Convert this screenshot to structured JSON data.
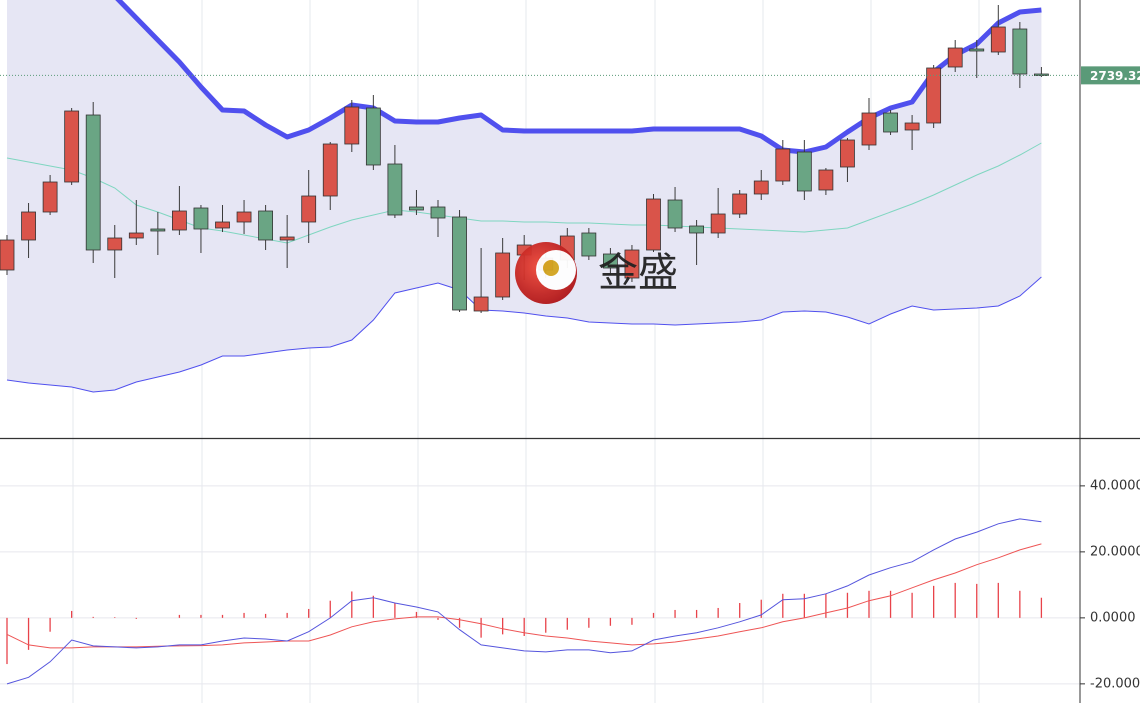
{
  "chart_data": [
    {
      "type": "candlestick",
      "watermark": "金盛",
      "last_price": 2739.32,
      "ylim": [
        2557,
        2777
      ],
      "up_color": "#d9544a",
      "down_color": "#6aa584",
      "band_color": "#5050ee",
      "middle_color": "#7fd6c0",
      "open": [
        2642,
        2657,
        2671,
        2686,
        2719.5,
        2652,
        2658,
        2662.5,
        2662,
        2673,
        2663,
        2666,
        2671.5,
        2657,
        2666,
        2679,
        2705,
        2723,
        2695,
        2673.5,
        2673.5,
        2668.5,
        2621.5,
        2628.5,
        2649.5,
        2642,
        2647,
        2660.5,
        2650,
        2638,
        2652,
        2677,
        2664,
        2660.5,
        2670,
        2680,
        2686.5,
        2701,
        2682,
        2693.5,
        2704.5,
        2720.5,
        2712,
        2715.5,
        2743.5,
        2752.5,
        2751,
        2762.5,
        2740
      ],
      "high": [
        2659.5,
        2675.5,
        2689.5,
        2723,
        2726,
        2664.5,
        2677,
        2671,
        2684,
        2674.5,
        2674.5,
        2677,
        2674.5,
        2669.5,
        2692,
        2706,
        2727,
        2729.5,
        2704.5,
        2682,
        2677,
        2672,
        2653,
        2658,
        2659.5,
        2652,
        2663,
        2663,
        2653,
        2654.5,
        2680,
        2683.5,
        2667,
        2683,
        2682,
        2692,
        2707,
        2707,
        2693,
        2708,
        2728,
        2722,
        2719.5,
        2744.5,
        2757,
        2757,
        2774.5,
        2766,
        2743.5
      ],
      "low": [
        2639.5,
        2648,
        2669.5,
        2684.5,
        2645.5,
        2638,
        2654.5,
        2649.5,
        2659.5,
        2650.5,
        2661,
        2660,
        2652,
        2643,
        2655.5,
        2672,
        2701,
        2692,
        2668,
        2669.5,
        2658.5,
        2621,
        2620.5,
        2627,
        2637,
        2638,
        2643,
        2647,
        2639.5,
        2636,
        2651,
        2661,
        2644.5,
        2658,
        2668,
        2677,
        2684.5,
        2677,
        2679.5,
        2686,
        2702,
        2709.5,
        2702,
        2713,
        2741,
        2738,
        2749.5,
        2733,
        2738.5
      ],
      "close": [
        2657,
        2671,
        2686,
        2721.5,
        2652,
        2658,
        2660.5,
        2661.5,
        2671.5,
        2662.5,
        2666,
        2671,
        2657,
        2658.5,
        2679,
        2705,
        2723.5,
        2694.5,
        2669.5,
        2672,
        2668,
        2622,
        2628.5,
        2650.5,
        2654.5,
        2648,
        2659,
        2649,
        2643,
        2652,
        2677.5,
        2663,
        2660.5,
        2670,
        2680,
        2686.5,
        2702.5,
        2681.5,
        2692,
        2707,
        2720.5,
        2711,
        2715.5,
        2743,
        2753,
        2751.5,
        2763.5,
        2740,
        2739.32
      ],
      "bands": {
        "upper": [
          2837,
          2825,
          2813.5,
          2802,
          2790.5,
          2779,
          2768,
          2757,
          2746,
          2733.5,
          2722,
          2721.5,
          2714.5,
          2708.5,
          2712,
          2718,
          2724.5,
          2723,
          2716.5,
          2716,
          2716,
          2718,
          2719.5,
          2712,
          2711.5,
          2711.5,
          2711.5,
          2711.5,
          2711.5,
          2711.5,
          2712.5,
          2712.5,
          2712.5,
          2712.5,
          2712.5,
          2709,
          2702,
          2701,
          2703.5,
          2711,
          2718,
          2723,
          2726,
          2741,
          2749.5,
          2755,
          2765.5,
          2771,
          2772
        ],
        "middle": [
          2698,
          2696,
          2694,
          2692,
          2688,
          2683,
          2674.5,
          2671,
          2667,
          2663,
          2661.5,
          2659.5,
          2657.5,
          2655.5,
          2659.5,
          2663.5,
          2667,
          2669.5,
          2672,
          2671,
          2669.5,
          2668,
          2666.5,
          2666.5,
          2666,
          2666,
          2665.5,
          2665.5,
          2665,
          2664.5,
          2664.5,
          2664,
          2663.5,
          2663,
          2662.5,
          2662,
          2661.5,
          2661,
          2662,
          2663,
          2667,
          2671,
          2675,
          2679.5,
          2684.5,
          2689.5,
          2694,
          2699.5,
          2705.5
        ],
        "lower": [
          2587,
          2585.5,
          2584.5,
          2583.5,
          2581,
          2582,
          2586,
          2588.5,
          2591,
          2594.5,
          2599,
          2599,
          2600.5,
          2602,
          2603,
          2603.5,
          2607,
          2617,
          2630.5,
          2633,
          2635.5,
          2632,
          2622,
          2621.5,
          2620.5,
          2619,
          2618,
          2616,
          2615.5,
          2615,
          2615,
          2614.5,
          2615,
          2615.5,
          2616,
          2617,
          2621,
          2621.5,
          2621,
          2618.5,
          2615,
          2620,
          2624,
          2622,
          2622.5,
          2623,
          2624,
          2629,
          2638.5
        ]
      }
    },
    {
      "type": "macd",
      "ylim": [
        -25.8,
        53.9
      ],
      "yticks": [
        {
          "value": 40,
          "label": "40.0000"
        },
        {
          "value": 20,
          "label": "20.0000"
        },
        {
          "value": 0,
          "label": "0.0000"
        },
        {
          "value": -20,
          "label": "-20.0000"
        }
      ],
      "grid": true,
      "histogram_color": "#e8434a",
      "dif_color": "#5555dd",
      "dea_color": "#ee5555",
      "histogram": [
        -14,
        -9.7,
        -4.2,
        2.1,
        0.3,
        0.2,
        -0.3,
        0,
        0.9,
        0.9,
        0.9,
        1.5,
        1.2,
        1.5,
        2.7,
        5.2,
        8,
        6.7,
        4.5,
        1.8,
        -0.6,
        -3,
        -6,
        -5,
        -5.5,
        -4.5,
        -3.6,
        -3,
        -2.4,
        -2.1,
        1.5,
        2.4,
        2.4,
        3,
        4.5,
        5.5,
        7.3,
        7.3,
        7.3,
        7.6,
        8.2,
        8.2,
        7.6,
        9.7,
        10.6,
        10.3,
        10.6,
        8.2,
        6.1
      ],
      "dif": [
        -20,
        -18,
        -13.3,
        -6.7,
        -8.5,
        -8.8,
        -9.1,
        -8.8,
        -8.2,
        -8.2,
        -7,
        -6.1,
        -6.4,
        -7,
        -4.2,
        0,
        5.2,
        6.1,
        4.5,
        3.3,
        1.8,
        -3.6,
        -8.2,
        -9.1,
        -10,
        -10.3,
        -9.7,
        -9.7,
        -10.6,
        -10,
        -6.7,
        -5.5,
        -4.5,
        -3,
        -1.2,
        0.9,
        5.5,
        5.8,
        7.3,
        9.7,
        13,
        15.2,
        17,
        20.6,
        23.9,
        26,
        28.5,
        30,
        29.1
      ],
      "dea": [
        -5,
        -8.2,
        -9.1,
        -9.1,
        -8.8,
        -8.8,
        -8.8,
        -8.6,
        -8.5,
        -8.4,
        -8.2,
        -7.6,
        -7.3,
        -7,
        -7,
        -5.2,
        -2.7,
        -1.2,
        -0.3,
        0.3,
        0.3,
        -0.6,
        -1.8,
        -3.3,
        -4.5,
        -5.5,
        -6.1,
        -7,
        -7.6,
        -8.2,
        -7.9,
        -7.3,
        -6.4,
        -5.5,
        -4.2,
        -3,
        -1.2,
        0,
        1.5,
        3,
        5.2,
        6.7,
        9.1,
        11.5,
        13.6,
        16.1,
        18.2,
        20.6,
        22.4
      ]
    }
  ]
}
